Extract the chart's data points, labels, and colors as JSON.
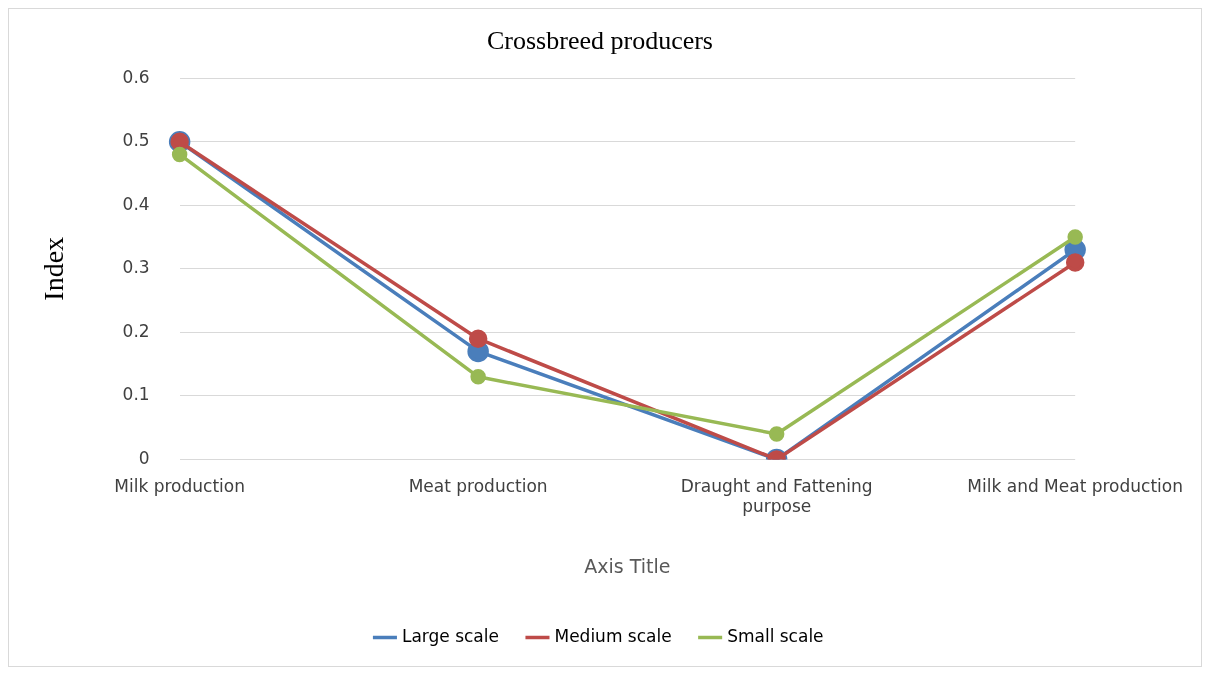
{
  "chart_data": {
    "type": "line",
    "title": "Crossbreed producers",
    "xlabel": "Axis Title",
    "ylabel": "Index",
    "categories": [
      "Milk production",
      "Meat production",
      "Draught and Fattening purpose",
      "Milk and Meat production"
    ],
    "series": [
      {
        "name": "Large scale",
        "color": "#4a7ebb",
        "values": [
          0.5,
          0.17,
          0,
          0.33
        ]
      },
      {
        "name": "Medium scale",
        "color": "#be4b48",
        "values": [
          0.5,
          0.19,
          0,
          0.31
        ]
      },
      {
        "name": "Small scale",
        "color": "#98b954",
        "values": [
          0.48,
          0.13,
          0.04,
          0.35
        ]
      }
    ],
    "ylim": [
      0,
      0.6
    ],
    "yticks": [
      0,
      0.1,
      0.2,
      0.3,
      0.4,
      0.5,
      0.6
    ],
    "grid": "y",
    "legend": "bottom",
    "marker": "circle",
    "line_style": "solid"
  }
}
